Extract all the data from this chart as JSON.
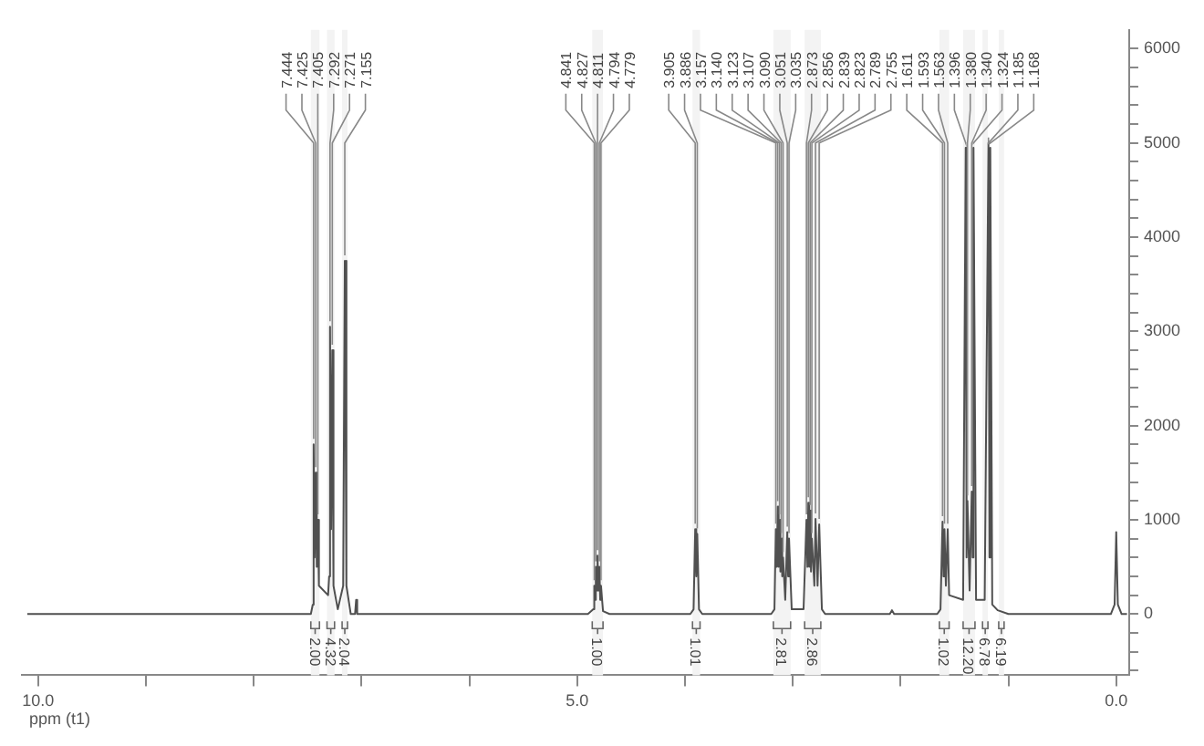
{
  "chart_data": {
    "type": "line",
    "xlabel": "ppm (t1)",
    "xlim": [
      10.15,
      -0.12
    ],
    "xticks": [
      {
        "value": 10,
        "label": "10.0"
      },
      {
        "value": 9,
        "label": null
      },
      {
        "value": 8,
        "label": null
      },
      {
        "value": 7,
        "label": null
      },
      {
        "value": 6,
        "label": null
      },
      {
        "value": 5,
        "label": "5.0"
      },
      {
        "value": 4,
        "label": null
      },
      {
        "value": 3,
        "label": null
      },
      {
        "value": 2,
        "label": null
      },
      {
        "value": 1,
        "label": null
      },
      {
        "value": 0,
        "label": "0.0"
      }
    ],
    "ylim": [
      -650,
      6200
    ],
    "yticks": [
      {
        "value": -600,
        "label": null
      },
      {
        "value": -400,
        "label": null
      },
      {
        "value": -200,
        "label": null
      },
      0,
      {
        "value": 200,
        "label": null
      },
      {
        "value": 400,
        "label": null
      },
      {
        "value": 600,
        "label": null
      },
      {
        "value": 800,
        "label": null
      },
      1000,
      {
        "value": 1200,
        "label": null
      },
      {
        "value": 1400,
        "label": null
      },
      {
        "value": 1600,
        "label": null
      },
      {
        "value": 1800,
        "label": null
      },
      2000,
      {
        "value": 2200,
        "label": null
      },
      {
        "value": 2400,
        "label": null
      },
      {
        "value": 2600,
        "label": null
      },
      {
        "value": 2800,
        "label": null
      },
      3000,
      {
        "value": 3200,
        "label": null
      },
      {
        "value": 3400,
        "label": null
      },
      {
        "value": 3600,
        "label": null
      },
      {
        "value": 3800,
        "label": null
      },
      4000,
      {
        "value": 4200,
        "label": null
      },
      {
        "value": 4400,
        "label": null
      },
      {
        "value": 4600,
        "label": null
      },
      {
        "value": 4800,
        "label": null
      },
      5000,
      {
        "value": 5200,
        "label": null
      },
      {
        "value": 5400,
        "label": null
      },
      {
        "value": 5600,
        "label": null
      },
      {
        "value": 5800,
        "label": null
      },
      6000
    ],
    "grid": false,
    "legend": false,
    "marker": "none",
    "line_style": "solid",
    "series": [
      {
        "color": "#505050",
        "x": [
          10.1,
          7.6,
          7.47,
          7.452,
          7.444,
          7.435,
          7.425,
          7.415,
          7.405,
          7.395,
          7.31,
          7.3,
          7.292,
          7.282,
          7.271,
          7.26,
          7.22,
          7.17,
          7.155,
          7.14,
          7.1,
          7.06,
          7.05,
          7.04,
          4.9,
          4.85,
          4.841,
          4.834,
          4.827,
          4.819,
          4.811,
          4.802,
          4.794,
          4.786,
          4.779,
          4.76,
          4.7,
          3.95,
          3.92,
          3.905,
          3.895,
          3.886,
          3.87,
          3.84,
          3.2,
          3.17,
          3.157,
          3.148,
          3.14,
          3.131,
          3.123,
          3.115,
          3.107,
          3.098,
          3.09,
          3.07,
          3.051,
          3.043,
          3.035,
          3.01,
          2.9,
          2.873,
          2.864,
          2.856,
          2.847,
          2.839,
          2.831,
          2.823,
          2.8,
          2.789,
          2.77,
          2.755,
          2.73,
          2.7,
          2.1,
          2.08,
          2.06,
          1.66,
          1.63,
          1.611,
          1.602,
          1.593,
          1.58,
          1.563,
          1.55,
          1.42,
          1.396,
          1.388,
          1.38,
          1.36,
          1.34,
          1.332,
          1.324,
          1.3,
          1.22,
          1.185,
          1.176,
          1.168,
          1.15,
          1.1,
          1.0,
          0.05,
          0.015,
          0.0,
          -0.015,
          -0.05,
          -0.1
        ],
        "values": [
          0,
          0,
          0,
          100,
          1800,
          600,
          1500,
          500,
          1000,
          300,
          200,
          400,
          3050,
          900,
          2800,
          300,
          50,
          300,
          3750,
          300,
          0,
          0,
          150,
          0,
          0,
          50,
          300,
          150,
          500,
          250,
          620,
          250,
          500,
          150,
          300,
          30,
          0,
          0,
          50,
          900,
          400,
          850,
          50,
          0,
          0,
          50,
          900,
          500,
          1140,
          500,
          1000,
          450,
          800,
          400,
          600,
          150,
          870,
          400,
          800,
          50,
          50,
          1000,
          500,
          1180,
          500,
          1100,
          450,
          800,
          300,
          1010,
          300,
          950,
          50,
          0,
          0,
          40,
          0,
          0,
          50,
          980,
          400,
          900,
          300,
          900,
          200,
          150,
          4950,
          600,
          1200,
          250,
          1300,
          600,
          4950,
          150,
          150,
          5000,
          600,
          4950,
          100,
          40,
          0,
          0,
          100,
          870,
          100,
          0,
          0
        ]
      }
    ],
    "annotations": [
      {
        "text": "7.444",
        "x": 7.444,
        "y": 1800
      },
      {
        "text": "7.425",
        "x": 7.425,
        "y": 1500
      },
      {
        "text": "7.405",
        "x": 7.405,
        "y": 1000
      },
      {
        "text": "7.292",
        "x": 7.292,
        "y": 3050
      },
      {
        "text": "7.271",
        "x": 7.271,
        "y": 2800
      },
      {
        "text": "7.155",
        "x": 7.155,
        "y": 3750
      },
      {
        "text": "4.841",
        "x": 4.841,
        "y": 300
      },
      {
        "text": "4.827",
        "x": 4.827,
        "y": 500
      },
      {
        "text": "4.811",
        "x": 4.811,
        "y": 620
      },
      {
        "text": "4.794",
        "x": 4.794,
        "y": 500
      },
      {
        "text": "4.779",
        "x": 4.779,
        "y": 300
      },
      {
        "text": "3.905",
        "x": 3.905,
        "y": 900
      },
      {
        "text": "3.886",
        "x": 3.886,
        "y": 850
      },
      {
        "text": "3.157",
        "x": 3.157,
        "y": 900
      },
      {
        "text": "3.140",
        "x": 3.14,
        "y": 1140
      },
      {
        "text": "3.123",
        "x": 3.123,
        "y": 1000
      },
      {
        "text": "3.107",
        "x": 3.107,
        "y": 800
      },
      {
        "text": "3.090",
        "x": 3.09,
        "y": 600
      },
      {
        "text": "3.051",
        "x": 3.051,
        "y": 870
      },
      {
        "text": "3.035",
        "x": 3.035,
        "y": 800
      },
      {
        "text": "2.873",
        "x": 2.873,
        "y": 1000
      },
      {
        "text": "2.856",
        "x": 2.856,
        "y": 1180
      },
      {
        "text": "2.839",
        "x": 2.839,
        "y": 1100
      },
      {
        "text": "2.823",
        "x": 2.823,
        "y": 800
      },
      {
        "text": "2.789",
        "x": 2.789,
        "y": 1010
      },
      {
        "text": "2.755",
        "x": 2.755,
        "y": 950
      },
      {
        "text": "1.611",
        "x": 1.611,
        "y": 980
      },
      {
        "text": "1.593",
        "x": 1.593,
        "y": 900
      },
      {
        "text": "1.563",
        "x": 1.563,
        "y": 900
      },
      {
        "text": "1.396",
        "x": 1.396,
        "y": 4950
      },
      {
        "text": "1.380",
        "x": 1.38,
        "y": 1200
      },
      {
        "text": "1.340",
        "x": 1.34,
        "y": 1300
      },
      {
        "text": "1.324",
        "x": 1.324,
        "y": 4950
      },
      {
        "text": "1.185",
        "x": 1.185,
        "y": 5000
      },
      {
        "text": "1.168",
        "x": 1.168,
        "y": 4950
      }
    ],
    "bands": [
      {
        "axis": "x",
        "from": 7.47,
        "to": 7.39,
        "label": "2.00"
      },
      {
        "axis": "x",
        "from": 7.32,
        "to": 7.25,
        "label": "4.32"
      },
      {
        "axis": "x",
        "from": 7.18,
        "to": 7.13,
        "label": "2.04"
      },
      {
        "axis": "x",
        "from": 4.86,
        "to": 4.76,
        "label": "1.00"
      },
      {
        "axis": "x",
        "from": 3.93,
        "to": 3.86,
        "label": "1.01"
      },
      {
        "axis": "x",
        "from": 3.18,
        "to": 3.02,
        "label": "2.81"
      },
      {
        "axis": "x",
        "from": 2.89,
        "to": 2.74,
        "label": "2.86"
      },
      {
        "axis": "x",
        "from": 1.64,
        "to": 1.55,
        "label": "1.02"
      },
      {
        "axis": "x",
        "from": 1.42,
        "to": 1.31,
        "label": "12.20"
      },
      {
        "axis": "x",
        "from": 1.24,
        "to": 1.19,
        "label": "6.78"
      },
      {
        "axis": "x",
        "from": 1.09,
        "to": 1.04,
        "label": "6.19"
      }
    ]
  }
}
